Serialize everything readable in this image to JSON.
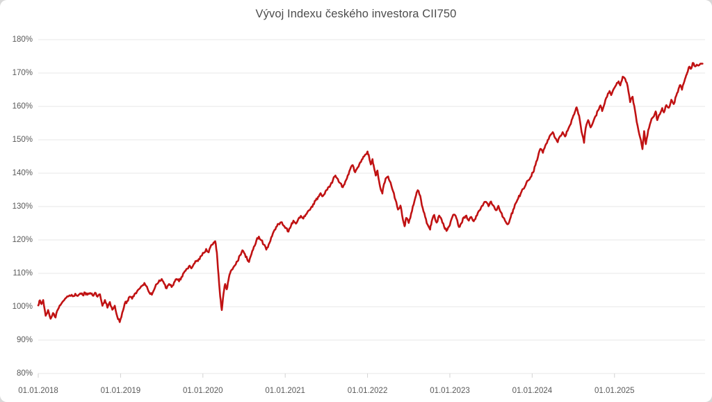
{
  "title": "Vývoj Indexu českého investora CII750",
  "chart_data": {
    "type": "line",
    "title": "Vývoj Indexu českého investora CII750",
    "xlabel": "",
    "ylabel": "",
    "legend": "none",
    "grid": "horizontal",
    "xlim": [
      2018.0,
      2026.1
    ],
    "ylim": [
      80,
      180
    ],
    "y_ticks": [
      {
        "v": 80,
        "label": "80%"
      },
      {
        "v": 90,
        "label": "90%"
      },
      {
        "v": 100,
        "label": "100%"
      },
      {
        "v": 110,
        "label": "110%"
      },
      {
        "v": 120,
        "label": "120%"
      },
      {
        "v": 130,
        "label": "130%"
      },
      {
        "v": 140,
        "label": "140%"
      },
      {
        "v": 150,
        "label": "150%"
      },
      {
        "v": 160,
        "label": "160%"
      },
      {
        "v": 170,
        "label": "170%"
      },
      {
        "v": 180,
        "label": "180%"
      }
    ],
    "x_ticks": [
      {
        "t": 2018,
        "label": "01.01.2018"
      },
      {
        "t": 2019,
        "label": "01.01.2019"
      },
      {
        "t": 2020,
        "label": "01.01.2020"
      },
      {
        "t": 2021,
        "label": "01.01.2021"
      },
      {
        "t": 2022,
        "label": "01.01.2022"
      },
      {
        "t": 2023,
        "label": "01.01.2023"
      },
      {
        "t": 2024,
        "label": "01.01.2024"
      },
      {
        "t": 2025,
        "label": "01.01.2025"
      }
    ],
    "colors": {
      "line": "#c01213",
      "grid": "#e7e7e7",
      "tick": "#d2d2d2",
      "axis_text": "#595959",
      "title_text": "#4c4c4c",
      "background": "#ffffff"
    },
    "series": [
      {
        "name": "CII750",
        "color": "#c01213",
        "points": [
          [
            2018.0,
            100.4
          ],
          [
            2018.02,
            101.9
          ],
          [
            2018.04,
            100.8
          ],
          [
            2018.06,
            102.0
          ],
          [
            2018.09,
            97.3
          ],
          [
            2018.12,
            99.0
          ],
          [
            2018.15,
            96.4
          ],
          [
            2018.18,
            98.1
          ],
          [
            2018.21,
            96.8
          ],
          [
            2018.24,
            99.2
          ],
          [
            2018.27,
            100.5
          ],
          [
            2018.3,
            101.6
          ],
          [
            2018.34,
            102.7
          ],
          [
            2018.38,
            103.4
          ],
          [
            2018.42,
            103.1
          ],
          [
            2018.45,
            103.9
          ],
          [
            2018.48,
            103.2
          ],
          [
            2018.51,
            104.0
          ],
          [
            2018.54,
            103.5
          ],
          [
            2018.57,
            104.2
          ],
          [
            2018.6,
            103.6
          ],
          [
            2018.63,
            104.1
          ],
          [
            2018.66,
            103.4
          ],
          [
            2018.69,
            104.2
          ],
          [
            2018.72,
            103.0
          ],
          [
            2018.75,
            103.7
          ],
          [
            2018.78,
            100.3
          ],
          [
            2018.81,
            102.0
          ],
          [
            2018.84,
            99.7
          ],
          [
            2018.87,
            101.4
          ],
          [
            2018.9,
            99.1
          ],
          [
            2018.93,
            100.3
          ],
          [
            2018.96,
            97.0
          ],
          [
            2018.99,
            95.4
          ],
          [
            2019.02,
            98.2
          ],
          [
            2019.05,
            100.9
          ],
          [
            2019.08,
            101.7
          ],
          [
            2019.11,
            103.0
          ],
          [
            2019.14,
            102.4
          ],
          [
            2019.17,
            103.8
          ],
          [
            2019.2,
            104.6
          ],
          [
            2019.23,
            105.4
          ],
          [
            2019.26,
            106.2
          ],
          [
            2019.29,
            107.1
          ],
          [
            2019.32,
            106.0
          ],
          [
            2019.35,
            104.2
          ],
          [
            2019.38,
            103.6
          ],
          [
            2019.41,
            105.2
          ],
          [
            2019.44,
            106.8
          ],
          [
            2019.47,
            107.9
          ],
          [
            2019.5,
            108.3
          ],
          [
            2019.53,
            106.9
          ],
          [
            2019.56,
            105.5
          ],
          [
            2019.59,
            106.8
          ],
          [
            2019.62,
            105.9
          ],
          [
            2019.65,
            107.3
          ],
          [
            2019.68,
            108.3
          ],
          [
            2019.71,
            107.6
          ],
          [
            2019.74,
            108.9
          ],
          [
            2019.77,
            110.2
          ],
          [
            2019.8,
            111.3
          ],
          [
            2019.83,
            112.1
          ],
          [
            2019.86,
            111.5
          ],
          [
            2019.89,
            112.8
          ],
          [
            2019.92,
            113.6
          ],
          [
            2019.95,
            114.3
          ],
          [
            2019.98,
            115.2
          ],
          [
            2020.01,
            116.1
          ],
          [
            2020.04,
            117.3
          ],
          [
            2020.07,
            116.3
          ],
          [
            2020.1,
            118.4
          ],
          [
            2020.13,
            119.2
          ],
          [
            2020.15,
            119.6
          ],
          [
            2020.17,
            116.2
          ],
          [
            2020.19,
            109.5
          ],
          [
            2020.21,
            103.0
          ],
          [
            2020.23,
            99.0
          ],
          [
            2020.25,
            103.8
          ],
          [
            2020.27,
            106.8
          ],
          [
            2020.29,
            105.2
          ],
          [
            2020.31,
            107.9
          ],
          [
            2020.33,
            110.0
          ],
          [
            2020.36,
            111.2
          ],
          [
            2020.39,
            112.4
          ],
          [
            2020.42,
            113.6
          ],
          [
            2020.45,
            115.4
          ],
          [
            2020.48,
            116.9
          ],
          [
            2020.51,
            115.8
          ],
          [
            2020.54,
            114.1
          ],
          [
            2020.56,
            113.4
          ],
          [
            2020.59,
            115.7
          ],
          [
            2020.62,
            118.0
          ],
          [
            2020.65,
            119.8
          ],
          [
            2020.68,
            121.0
          ],
          [
            2020.71,
            119.9
          ],
          [
            2020.74,
            118.6
          ],
          [
            2020.77,
            117.1
          ],
          [
            2020.8,
            118.7
          ],
          [
            2020.83,
            120.8
          ],
          [
            2020.86,
            122.5
          ],
          [
            2020.89,
            123.9
          ],
          [
            2020.92,
            124.8
          ],
          [
            2020.95,
            125.3
          ],
          [
            2020.98,
            124.3
          ],
          [
            2021.01,
            123.6
          ],
          [
            2021.04,
            122.5
          ],
          [
            2021.07,
            124.2
          ],
          [
            2021.1,
            125.8
          ],
          [
            2021.13,
            124.9
          ],
          [
            2021.16,
            126.3
          ],
          [
            2021.19,
            127.2
          ],
          [
            2021.22,
            126.4
          ],
          [
            2021.25,
            127.6
          ],
          [
            2021.28,
            128.7
          ],
          [
            2021.31,
            129.5
          ],
          [
            2021.34,
            130.7
          ],
          [
            2021.37,
            131.8
          ],
          [
            2021.4,
            132.9
          ],
          [
            2021.43,
            134.0
          ],
          [
            2021.46,
            133.2
          ],
          [
            2021.49,
            134.6
          ],
          [
            2021.52,
            135.7
          ],
          [
            2021.55,
            136.5
          ],
          [
            2021.58,
            138.0
          ],
          [
            2021.61,
            139.3
          ],
          [
            2021.64,
            138.2
          ],
          [
            2021.67,
            137.0
          ],
          [
            2021.7,
            135.8
          ],
          [
            2021.73,
            137.5
          ],
          [
            2021.76,
            139.4
          ],
          [
            2021.79,
            141.2
          ],
          [
            2021.82,
            142.4
          ],
          [
            2021.85,
            140.3
          ],
          [
            2021.88,
            141.7
          ],
          [
            2021.91,
            143.2
          ],
          [
            2021.94,
            144.3
          ],
          [
            2021.97,
            145.5
          ],
          [
            2022.0,
            146.5
          ],
          [
            2022.02,
            144.8
          ],
          [
            2022.04,
            142.6
          ],
          [
            2022.06,
            144.2
          ],
          [
            2022.08,
            141.5
          ],
          [
            2022.1,
            139.3
          ],
          [
            2022.12,
            140.8
          ],
          [
            2022.14,
            137.6
          ],
          [
            2022.16,
            135.2
          ],
          [
            2022.18,
            133.9
          ],
          [
            2022.2,
            136.8
          ],
          [
            2022.22,
            138.4
          ],
          [
            2022.25,
            139.0
          ],
          [
            2022.28,
            137.2
          ],
          [
            2022.31,
            134.6
          ],
          [
            2022.34,
            132.0
          ],
          [
            2022.37,
            129.1
          ],
          [
            2022.4,
            130.3
          ],
          [
            2022.42,
            127.4
          ],
          [
            2022.45,
            124.1
          ],
          [
            2022.47,
            126.6
          ],
          [
            2022.5,
            125.1
          ],
          [
            2022.53,
            127.9
          ],
          [
            2022.56,
            130.6
          ],
          [
            2022.59,
            133.4
          ],
          [
            2022.61,
            134.9
          ],
          [
            2022.64,
            133.2
          ],
          [
            2022.67,
            129.6
          ],
          [
            2022.7,
            126.9
          ],
          [
            2022.73,
            124.6
          ],
          [
            2022.76,
            123.1
          ],
          [
            2022.78,
            125.6
          ],
          [
            2022.81,
            127.5
          ],
          [
            2022.84,
            125.2
          ],
          [
            2022.87,
            127.3
          ],
          [
            2022.9,
            126.1
          ],
          [
            2022.93,
            124.0
          ],
          [
            2022.96,
            122.7
          ],
          [
            2022.99,
            124.0
          ],
          [
            2023.02,
            126.2
          ],
          [
            2023.05,
            127.6
          ],
          [
            2023.08,
            126.5
          ],
          [
            2023.11,
            123.9
          ],
          [
            2023.14,
            125.0
          ],
          [
            2023.17,
            126.8
          ],
          [
            2023.2,
            127.3
          ],
          [
            2023.23,
            125.8
          ],
          [
            2023.26,
            126.9
          ],
          [
            2023.29,
            125.6
          ],
          [
            2023.32,
            127.2
          ],
          [
            2023.35,
            128.6
          ],
          [
            2023.38,
            129.8
          ],
          [
            2023.41,
            130.9
          ],
          [
            2023.44,
            131.4
          ],
          [
            2023.47,
            130.1
          ],
          [
            2023.5,
            131.5
          ],
          [
            2023.53,
            130.3
          ],
          [
            2023.56,
            128.9
          ],
          [
            2023.59,
            130.2
          ],
          [
            2023.62,
            128.3
          ],
          [
            2023.65,
            126.7
          ],
          [
            2023.68,
            125.4
          ],
          [
            2023.71,
            124.8
          ],
          [
            2023.74,
            126.9
          ],
          [
            2023.77,
            129.1
          ],
          [
            2023.8,
            131.0
          ],
          [
            2023.83,
            132.4
          ],
          [
            2023.86,
            133.9
          ],
          [
            2023.89,
            135.3
          ],
          [
            2023.92,
            136.4
          ],
          [
            2023.95,
            137.8
          ],
          [
            2023.98,
            138.8
          ],
          [
            2024.01,
            140.2
          ],
          [
            2024.04,
            142.4
          ],
          [
            2024.07,
            144.9
          ],
          [
            2024.1,
            147.3
          ],
          [
            2024.13,
            146.1
          ],
          [
            2024.16,
            148.3
          ],
          [
            2024.19,
            150.0
          ],
          [
            2024.22,
            151.4
          ],
          [
            2024.25,
            152.3
          ],
          [
            2024.28,
            150.5
          ],
          [
            2024.31,
            149.3
          ],
          [
            2024.34,
            151.1
          ],
          [
            2024.37,
            152.3
          ],
          [
            2024.4,
            151.0
          ],
          [
            2024.43,
            152.7
          ],
          [
            2024.46,
            154.4
          ],
          [
            2024.49,
            156.5
          ],
          [
            2024.52,
            158.4
          ],
          [
            2024.54,
            159.7
          ],
          [
            2024.57,
            157.2
          ],
          [
            2024.6,
            152.4
          ],
          [
            2024.63,
            149.1
          ],
          [
            2024.65,
            153.5
          ],
          [
            2024.68,
            155.9
          ],
          [
            2024.71,
            153.7
          ],
          [
            2024.74,
            155.3
          ],
          [
            2024.77,
            157.1
          ],
          [
            2024.8,
            158.8
          ],
          [
            2024.83,
            160.3
          ],
          [
            2024.85,
            158.6
          ],
          [
            2024.88,
            160.9
          ],
          [
            2024.91,
            162.9
          ],
          [
            2024.94,
            164.6
          ],
          [
            2024.96,
            163.4
          ],
          [
            2024.99,
            165.2
          ],
          [
            2025.02,
            166.4
          ],
          [
            2025.05,
            167.5
          ],
          [
            2025.07,
            166.3
          ],
          [
            2025.1,
            168.9
          ],
          [
            2025.13,
            168.2
          ],
          [
            2025.16,
            166.0
          ],
          [
            2025.19,
            161.3
          ],
          [
            2025.22,
            162.9
          ],
          [
            2025.25,
            158.6
          ],
          [
            2025.28,
            154.3
          ],
          [
            2025.31,
            150.8
          ],
          [
            2025.34,
            147.2
          ],
          [
            2025.36,
            152.6
          ],
          [
            2025.38,
            148.7
          ],
          [
            2025.41,
            152.9
          ],
          [
            2025.44,
            155.4
          ],
          [
            2025.47,
            156.8
          ],
          [
            2025.5,
            158.5
          ],
          [
            2025.52,
            155.9
          ],
          [
            2025.55,
            157.6
          ],
          [
            2025.58,
            159.5
          ],
          [
            2025.6,
            158.2
          ],
          [
            2025.63,
            160.4
          ],
          [
            2025.66,
            159.6
          ],
          [
            2025.69,
            162.0
          ],
          [
            2025.72,
            160.7
          ],
          [
            2025.75,
            163.2
          ],
          [
            2025.78,
            165.4
          ],
          [
            2025.8,
            166.4
          ],
          [
            2025.82,
            165.0
          ],
          [
            2025.85,
            167.6
          ],
          [
            2025.87,
            169.3
          ],
          [
            2025.89,
            170.4
          ],
          [
            2025.91,
            171.9
          ],
          [
            2025.93,
            171.3
          ],
          [
            2025.95,
            173.0
          ],
          [
            2025.97,
            172.2
          ],
          [
            2026.0,
            172.5
          ],
          [
            2026.03,
            172.4
          ],
          [
            2026.07,
            172.8
          ]
        ]
      }
    ]
  }
}
